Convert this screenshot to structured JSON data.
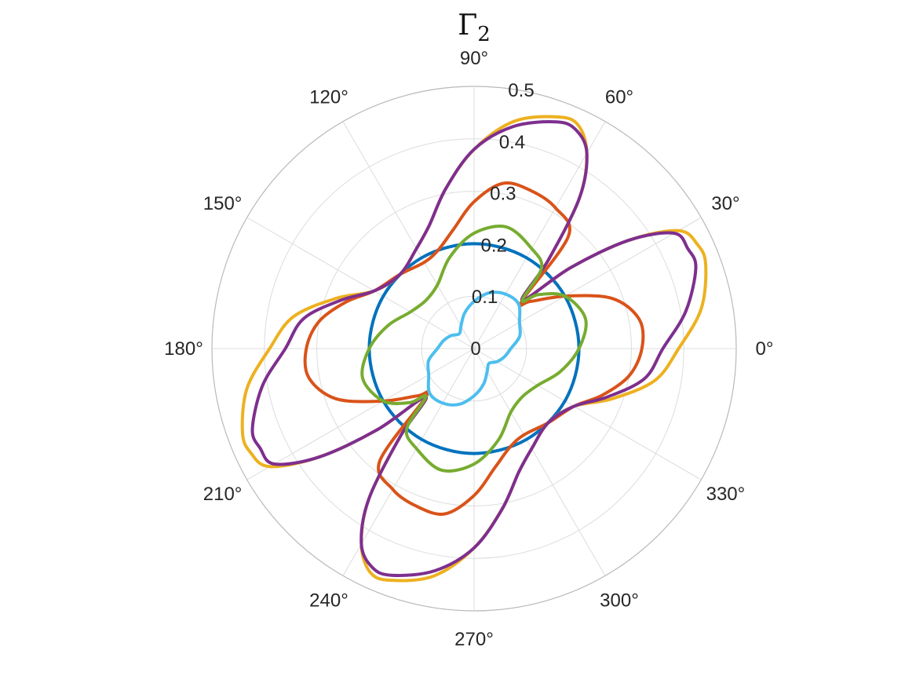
{
  "chart_data": {
    "type": "line",
    "coordinate_system": "polar",
    "title": "Γ₂",
    "title_main": "Γ",
    "title_sub": "2",
    "theta_unit": "degrees",
    "theta_ticks": [
      0,
      30,
      60,
      90,
      120,
      150,
      180,
      210,
      240,
      270,
      300,
      330
    ],
    "theta_tick_labels": [
      "0°",
      "30°",
      "60°",
      "90°",
      "120°",
      "150°",
      "180°",
      "210°",
      "240°",
      "270°",
      "300°",
      "330°"
    ],
    "r_ticks": [
      0,
      0.1,
      0.2,
      0.3,
      0.4,
      0.5
    ],
    "r_tick_labels": [
      "0",
      "0.1",
      "0.2",
      "0.3",
      "0.4",
      "0.5"
    ],
    "rlim": [
      0,
      0.5
    ],
    "grid": true,
    "legend": "none",
    "series": [
      {
        "color": "#0072BD",
        "theta": [
          0,
          30,
          60,
          90,
          120,
          150,
          180,
          210,
          240,
          270,
          300,
          330,
          360
        ],
        "r": [
          0.2,
          0.2,
          0.2,
          0.2,
          0.2,
          0.2,
          0.2,
          0.2,
          0.2,
          0.2,
          0.2,
          0.2,
          0.2
        ]
      },
      {
        "color": "#D95319",
        "theta": [
          0,
          10,
          20,
          30,
          40,
          45,
          50,
          60,
          70,
          80,
          90,
          100,
          110,
          120,
          135,
          150,
          160,
          170,
          180,
          190,
          200,
          210,
          220,
          225,
          230,
          240,
          250,
          260,
          270,
          280,
          290,
          300,
          315,
          330,
          340,
          350,
          360
        ],
        "r": [
          0.32,
          0.32,
          0.28,
          0.2,
          0.14,
          0.13,
          0.28,
          0.31,
          0.32,
          0.32,
          0.28,
          0.23,
          0.2,
          0.19,
          0.2,
          0.22,
          0.26,
          0.3,
          0.32,
          0.32,
          0.28,
          0.2,
          0.14,
          0.13,
          0.28,
          0.31,
          0.32,
          0.32,
          0.28,
          0.23,
          0.2,
          0.19,
          0.2,
          0.22,
          0.26,
          0.3,
          0.32
        ]
      },
      {
        "color": "#EDB120",
        "theta": [
          0,
          10,
          20,
          25,
          30,
          35,
          40,
          45,
          50,
          55,
          60,
          65,
          70,
          80,
          90,
          100,
          110,
          120,
          135,
          150,
          160,
          170,
          180,
          190,
          200,
          205,
          210,
          215,
          220,
          225,
          230,
          235,
          240,
          245,
          250,
          260,
          270,
          280,
          290,
          300,
          315,
          330,
          340,
          350,
          360
        ],
        "r": [
          0.39,
          0.44,
          0.47,
          0.47,
          0.45,
          0.36,
          0.24,
          0.13,
          0.22,
          0.35,
          0.43,
          0.47,
          0.47,
          0.44,
          0.38,
          0.31,
          0.25,
          0.22,
          0.2,
          0.22,
          0.28,
          0.35,
          0.39,
          0.44,
          0.47,
          0.47,
          0.45,
          0.36,
          0.24,
          0.13,
          0.22,
          0.35,
          0.43,
          0.47,
          0.47,
          0.44,
          0.38,
          0.31,
          0.25,
          0.22,
          0.2,
          0.22,
          0.28,
          0.35,
          0.39
        ]
      },
      {
        "color": "#7E2F8E",
        "theta": [
          0,
          10,
          20,
          25,
          30,
          35,
          40,
          45,
          50,
          55,
          60,
          65,
          70,
          80,
          90,
          100,
          110,
          120,
          135,
          150,
          160,
          170,
          180,
          190,
          200,
          205,
          210,
          215,
          220,
          225,
          230,
          235,
          240,
          245,
          250,
          260,
          270,
          280,
          290,
          300,
          315,
          330,
          340,
          350,
          360
        ],
        "r": [
          0.36,
          0.41,
          0.45,
          0.45,
          0.44,
          0.36,
          0.24,
          0.13,
          0.22,
          0.35,
          0.43,
          0.46,
          0.46,
          0.43,
          0.38,
          0.31,
          0.25,
          0.22,
          0.2,
          0.22,
          0.27,
          0.33,
          0.36,
          0.41,
          0.45,
          0.45,
          0.44,
          0.36,
          0.24,
          0.13,
          0.22,
          0.35,
          0.43,
          0.46,
          0.46,
          0.43,
          0.38,
          0.31,
          0.25,
          0.22,
          0.2,
          0.22,
          0.27,
          0.33,
          0.36
        ]
      },
      {
        "color": "#77AC30",
        "theta": [
          0,
          15,
          30,
          40,
          45,
          50,
          60,
          75,
          90,
          105,
          120,
          135,
          150,
          165,
          180,
          195,
          210,
          220,
          225,
          230,
          240,
          255,
          270,
          285,
          300,
          315,
          330,
          345,
          360
        ],
        "r": [
          0.2,
          0.22,
          0.2,
          0.16,
          0.13,
          0.2,
          0.22,
          0.24,
          0.22,
          0.18,
          0.14,
          0.13,
          0.14,
          0.17,
          0.2,
          0.22,
          0.2,
          0.16,
          0.13,
          0.2,
          0.22,
          0.24,
          0.22,
          0.18,
          0.14,
          0.13,
          0.14,
          0.17,
          0.2
        ]
      },
      {
        "color": "#4DBEEE",
        "theta": [
          0,
          15,
          30,
          45,
          60,
          75,
          90,
          105,
          120,
          135,
          150,
          165,
          180,
          195,
          210,
          225,
          240,
          255,
          270,
          285,
          300,
          315,
          330,
          345,
          360
        ],
        "r": [
          0.07,
          0.09,
          0.1,
          0.12,
          0.12,
          0.11,
          0.09,
          0.07,
          0.05,
          0.04,
          0.05,
          0.06,
          0.07,
          0.09,
          0.1,
          0.12,
          0.12,
          0.11,
          0.09,
          0.07,
          0.05,
          0.04,
          0.05,
          0.06,
          0.07
        ]
      }
    ]
  }
}
